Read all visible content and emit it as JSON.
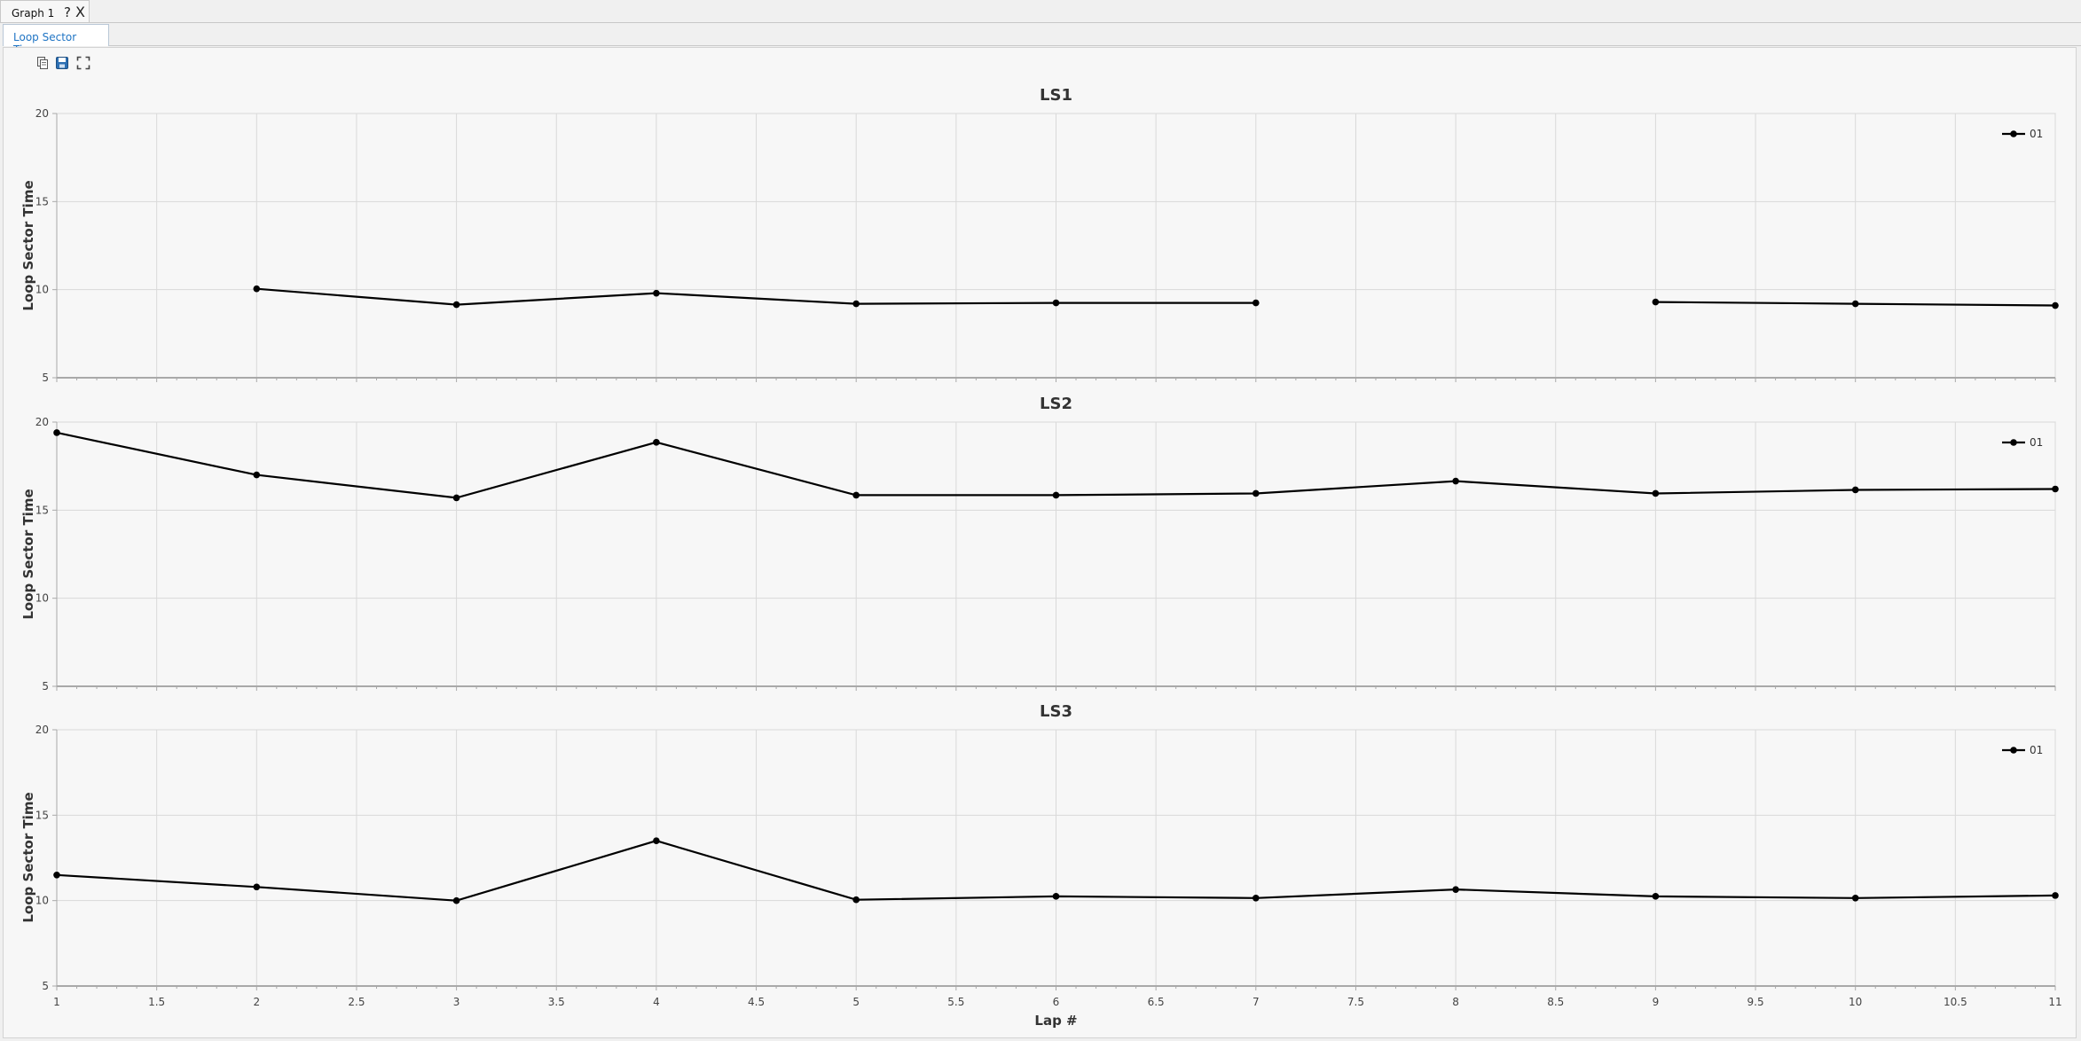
{
  "window": {
    "tab_title": "Graph 1",
    "help_label": "?",
    "close_label": "X"
  },
  "subtab": {
    "label": "Loop Sector Times"
  },
  "toolbar": {
    "icons": [
      "copy-icon",
      "save-icon",
      "fullscreen-icon"
    ]
  },
  "colors": {
    "line": "#000000",
    "grid": "#d9d9d9",
    "axis": "#a9a9a9",
    "tab_accent": "#1f74c4"
  },
  "chart_data": [
    {
      "type": "line",
      "title": "LS1",
      "ylabel": "Loop Sector Time",
      "xlabel": "",
      "xlim": [
        1,
        11
      ],
      "ylim": [
        5,
        20
      ],
      "ytick_labels": [
        "5",
        "10",
        "15",
        "20"
      ],
      "x_ticks": [
        1,
        1.5,
        2,
        2.5,
        3,
        3.5,
        4,
        4.5,
        5,
        5.5,
        6,
        6.5,
        7,
        7.5,
        8,
        8.5,
        9,
        9.5,
        10,
        10.5,
        11
      ],
      "grid": true,
      "legend_position": "top-right",
      "series": [
        {
          "name": "01",
          "x": [
            2,
            3,
            4,
            5,
            6,
            7,
            9,
            10,
            11
          ],
          "y": [
            10.05,
            9.15,
            9.8,
            9.2,
            9.25,
            9.25,
            9.3,
            9.2,
            9.1
          ],
          "segments": [
            [
              2,
              3,
              4,
              5,
              6,
              7
            ],
            [
              9,
              10,
              11
            ]
          ]
        }
      ]
    },
    {
      "type": "line",
      "title": "LS2",
      "ylabel": "Loop Sector Time",
      "xlabel": "",
      "xlim": [
        1,
        11
      ],
      "ylim": [
        5,
        20
      ],
      "ytick_labels": [
        "5",
        "10",
        "15",
        "20"
      ],
      "x_ticks": [
        1,
        1.5,
        2,
        2.5,
        3,
        3.5,
        4,
        4.5,
        5,
        5.5,
        6,
        6.5,
        7,
        7.5,
        8,
        8.5,
        9,
        9.5,
        10,
        10.5,
        11
      ],
      "grid": true,
      "legend_position": "top-right",
      "series": [
        {
          "name": "01",
          "x": [
            1,
            2,
            3,
            4,
            5,
            6,
            7,
            8,
            9,
            10,
            11
          ],
          "y": [
            19.4,
            17.0,
            15.7,
            18.85,
            15.85,
            15.85,
            15.95,
            16.65,
            15.95,
            16.15,
            16.2
          ]
        }
      ]
    },
    {
      "type": "line",
      "title": "LS3",
      "ylabel": "Loop Sector Time",
      "xlabel": "Lap #",
      "xlim": [
        1,
        11
      ],
      "ylim": [
        5,
        20
      ],
      "ytick_labels": [
        "5",
        "10",
        "15",
        "20"
      ],
      "x_ticks": [
        1,
        1.5,
        2,
        2.5,
        3,
        3.5,
        4,
        4.5,
        5,
        5.5,
        6,
        6.5,
        7,
        7.5,
        8,
        8.5,
        9,
        9.5,
        10,
        10.5,
        11
      ],
      "xtick_labels": [
        "1",
        "1.5",
        "2",
        "2.5",
        "3",
        "3.5",
        "4",
        "4.5",
        "5",
        "5.5",
        "6",
        "6.5",
        "7",
        "7.5",
        "8",
        "8.5",
        "9",
        "9.5",
        "10",
        "10.5",
        "11"
      ],
      "grid": true,
      "legend_position": "top-right",
      "series": [
        {
          "name": "01",
          "x": [
            1,
            2,
            3,
            4,
            5,
            6,
            7,
            8,
            9,
            10,
            11
          ],
          "y": [
            11.5,
            10.8,
            10.0,
            13.5,
            10.05,
            10.25,
            10.15,
            10.65,
            10.25,
            10.15,
            10.3
          ]
        }
      ]
    }
  ]
}
